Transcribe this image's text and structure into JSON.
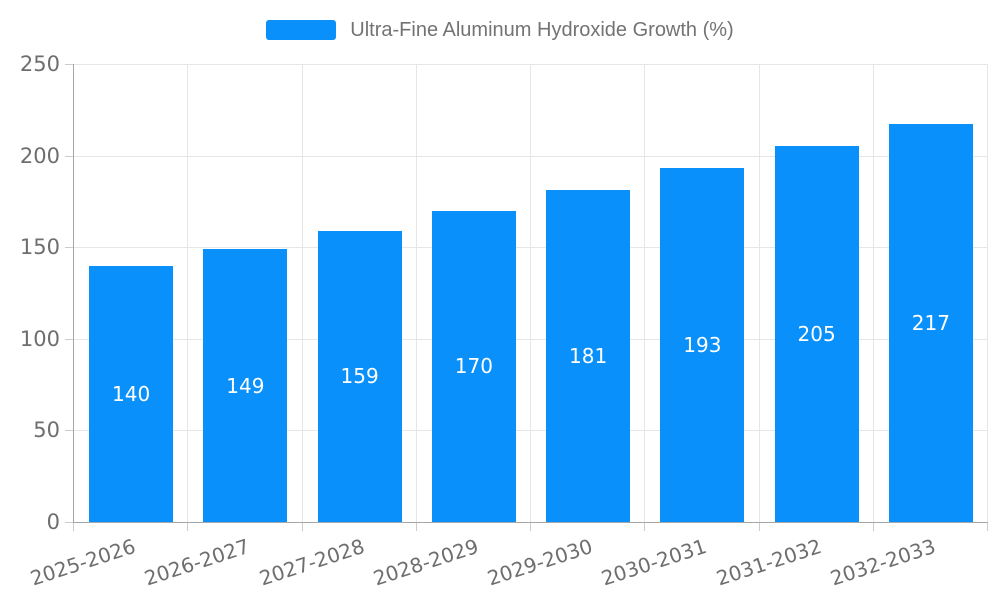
{
  "legend": {
    "label": "Ultra-Fine Aluminum Hydroxide Growth (%)"
  },
  "colors": {
    "bar": "#0a90fa",
    "axis_line": "#a6a6a6",
    "grid_line": "#e6e6e6",
    "tick_mark": "#cccccc",
    "tick_text": "#6e6e6e",
    "legend_text": "#737373",
    "value_label_text": "#ffffff",
    "background": "#ffffff"
  },
  "chart_data": {
    "type": "bar",
    "title": "Ultra-Fine Aluminum Hydroxide Growth (%)",
    "categories": [
      "2025-2026",
      "2026-2027",
      "2027-2028",
      "2028-2029",
      "2029-2030",
      "2030-2031",
      "2031-2032",
      "2032-2033"
    ],
    "series": [
      {
        "name": "Ultra-Fine Aluminum Hydroxide Growth (%)",
        "values": [
          140,
          149,
          159,
          170,
          181,
          193,
          205,
          217
        ]
      }
    ],
    "xlabel": "",
    "ylabel": "",
    "ylim": [
      0,
      250
    ],
    "yticks": [
      0,
      50,
      100,
      150,
      200,
      250
    ],
    "grid": true,
    "legend_position": "top",
    "value_label_position": "inside-center",
    "x_tick_rotation_deg": -18
  }
}
